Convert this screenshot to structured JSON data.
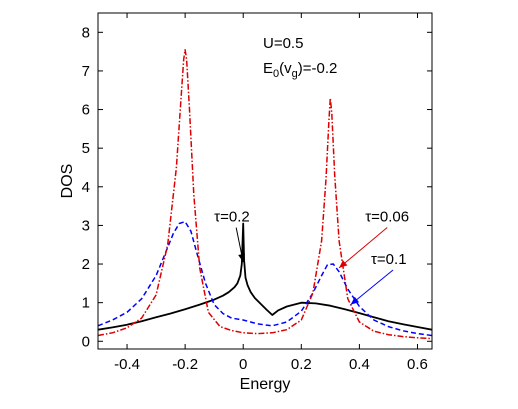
{
  "chart_data": {
    "type": "line",
    "xlabel": "Energy",
    "ylabel": "DOS",
    "xlim": [
      -0.5,
      0.65
    ],
    "ylim": [
      -0.2,
      8.5
    ],
    "xticks": [
      -0.4,
      -0.2,
      0,
      0.2,
      0.4,
      0.6
    ],
    "xtick_labels": [
      "-0.4",
      "-0.2",
      "0",
      "0.2",
      "0.4",
      "0.6"
    ],
    "yticks": [
      0,
      1,
      2,
      3,
      4,
      5,
      6,
      7,
      8
    ],
    "ytick_labels": [
      "0",
      "1",
      "2",
      "3",
      "4",
      "5",
      "6",
      "7",
      "8"
    ],
    "grid": false,
    "params_text": {
      "line1": "U=0.5",
      "line2_main": "E",
      "line2_sub0": "0",
      "line2_paren_open": "(v",
      "line2_sub_g": "g",
      "line2_rest": ")=-0.2"
    },
    "series": [
      {
        "id": "tau-0.2",
        "color": "#000000",
        "style": "solid",
        "x": [
          -0.5,
          -0.45,
          -0.4,
          -0.35,
          -0.3,
          -0.25,
          -0.2,
          -0.15,
          -0.1,
          -0.07,
          -0.05,
          -0.03,
          -0.02,
          -0.01,
          -0.005,
          0.0,
          0.003,
          0.008,
          0.015,
          0.025,
          0.04,
          0.06,
          0.08,
          0.1,
          0.12,
          0.15,
          0.2,
          0.25,
          0.3,
          0.35,
          0.4,
          0.45,
          0.5,
          0.55,
          0.6,
          0.65
        ],
        "y": [
          0.3,
          0.36,
          0.43,
          0.52,
          0.62,
          0.72,
          0.83,
          0.95,
          1.08,
          1.18,
          1.27,
          1.4,
          1.5,
          1.7,
          2.0,
          3.05,
          2.1,
          1.65,
          1.45,
          1.28,
          1.12,
          0.97,
          0.82,
          0.68,
          0.8,
          0.9,
          1.0,
          0.98,
          0.92,
          0.83,
          0.73,
          0.62,
          0.52,
          0.44,
          0.37,
          0.3
        ]
      },
      {
        "id": "tau-0.1",
        "color": "#0000ff",
        "style": "dashed",
        "x": [
          -0.5,
          -0.45,
          -0.4,
          -0.35,
          -0.3,
          -0.27,
          -0.24,
          -0.22,
          -0.2,
          -0.18,
          -0.16,
          -0.13,
          -0.1,
          -0.07,
          -0.04,
          0.0,
          0.05,
          0.1,
          0.15,
          0.2,
          0.24,
          0.27,
          0.29,
          0.31,
          0.33,
          0.36,
          0.4,
          0.45,
          0.5,
          0.55,
          0.6,
          0.65
        ],
        "y": [
          0.4,
          0.55,
          0.75,
          1.1,
          1.7,
          2.25,
          2.8,
          3.05,
          3.1,
          2.85,
          2.3,
          1.5,
          0.95,
          0.72,
          0.6,
          0.55,
          0.45,
          0.4,
          0.5,
          0.78,
          1.25,
          1.7,
          1.98,
          2.0,
          1.8,
          1.35,
          0.9,
          0.55,
          0.38,
          0.27,
          0.2,
          0.15
        ]
      },
      {
        "id": "tau-0.06",
        "color": "#dd0000",
        "style": "dashdot",
        "x": [
          -0.5,
          -0.45,
          -0.4,
          -0.35,
          -0.3,
          -0.26,
          -0.23,
          -0.215,
          -0.205,
          -0.2,
          -0.195,
          -0.185,
          -0.17,
          -0.15,
          -0.12,
          -0.08,
          -0.04,
          0.0,
          0.05,
          0.1,
          0.15,
          0.2,
          0.24,
          0.27,
          0.285,
          0.295,
          0.3,
          0.305,
          0.315,
          0.33,
          0.36,
          0.4,
          0.45,
          0.5,
          0.55,
          0.6,
          0.65
        ],
        "y": [
          0.15,
          0.22,
          0.35,
          0.6,
          1.2,
          2.5,
          4.5,
          6.2,
          7.3,
          7.55,
          7.3,
          6.0,
          3.8,
          1.9,
          0.75,
          0.38,
          0.28,
          0.22,
          0.2,
          0.22,
          0.3,
          0.55,
          1.25,
          2.6,
          4.2,
          5.7,
          6.3,
          5.9,
          4.3,
          2.6,
          1.1,
          0.5,
          0.26,
          0.17,
          0.12,
          0.09,
          0.07
        ]
      }
    ],
    "annotations": [
      {
        "id": "tau-0.2",
        "text": "τ=0.2",
        "color": "#000000",
        "x": -0.1,
        "y": 3.1,
        "arrow_to_x": 0.0,
        "arrow_to_y": 2.05
      },
      {
        "id": "tau-0.06",
        "text": "τ=0.06",
        "color": "#dd0000",
        "x": 0.42,
        "y": 3.1,
        "arrow_to_x": 0.33,
        "arrow_to_y": 1.9
      },
      {
        "id": "tau-0.1",
        "text": "τ=0.1",
        "color": "#0000ff",
        "x": 0.44,
        "y": 2.0,
        "arrow_to_x": 0.37,
        "arrow_to_y": 0.95
      }
    ]
  }
}
